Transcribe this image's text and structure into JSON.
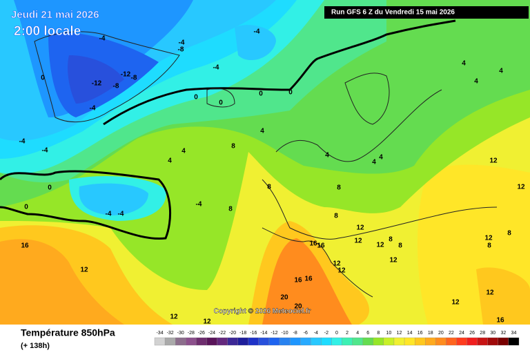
{
  "map": {
    "title": "Jeudi 21 mai 2026",
    "local_time": "2:00 locale",
    "run": "Run GFS 6 Z du Vendredi 15 mai 2026",
    "copyright": "Copyright © 2026 Meteociel.fr",
    "variable": "Température 850hPa",
    "lead_time": "(+ 138h)",
    "contour_labels": [
      -4,
      -4,
      -4,
      -4,
      -8,
      -8,
      -12,
      -12,
      -8,
      -4,
      0,
      -4,
      -4,
      0,
      0,
      -4,
      -4,
      -4,
      4,
      4,
      4,
      0,
      0,
      0,
      0,
      8,
      8,
      8,
      8,
      8,
      12,
      12,
      16,
      16,
      16,
      16,
      20,
      20,
      16,
      12,
      12,
      12,
      12,
      12,
      16,
      12,
      12,
      12,
      8,
      8,
      4,
      4,
      4,
      4,
      4,
      8,
      8,
      12,
      12,
      12,
      12,
      4
    ],
    "scale": {
      "values": [
        -34,
        -32,
        -30,
        -28,
        -26,
        -24,
        -22,
        -20,
        -18,
        -16,
        -14,
        -12,
        -10,
        -8,
        -6,
        -4,
        -2,
        0,
        2,
        4,
        6,
        8,
        10,
        12,
        14,
        16,
        18,
        20,
        22,
        24,
        26,
        28,
        30,
        32,
        34
      ],
      "colors": [
        "#d2d2d2",
        "#aaaaaa",
        "#8c6e8c",
        "#8c508c",
        "#6e2d6e",
        "#5a145a",
        "#64287d",
        "#3c2896",
        "#1e1e9b",
        "#1e32c8",
        "#2850dc",
        "#1e64f0",
        "#2882f0",
        "#1e96ff",
        "#28aaff",
        "#28c8ff",
        "#1edcff",
        "#32f0e6",
        "#3cf0b4",
        "#50e68c",
        "#64dc50",
        "#96e628",
        "#c8f028",
        "#f0f032",
        "#ffe628",
        "#ffc81e",
        "#ffaa1e",
        "#ff8c1e",
        "#ff641e",
        "#ff3c1e",
        "#f01e1e",
        "#c81414",
        "#a00a0a",
        "#780000",
        "#000000"
      ]
    }
  }
}
